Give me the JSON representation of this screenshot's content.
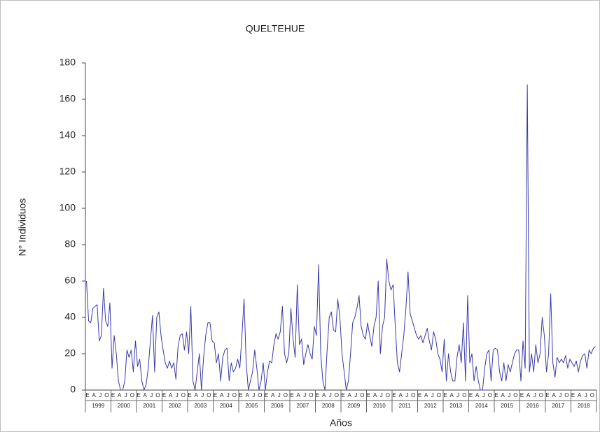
{
  "chart_data": {
    "type": "line",
    "title": "QUELTEHUE",
    "y_label": "N° Individuos",
    "x_label": "Años",
    "color": "#3a3aa8",
    "ylim": [
      0,
      180
    ],
    "yticks": [
      0,
      20,
      40,
      60,
      80,
      100,
      120,
      140,
      160,
      180
    ],
    "years": [
      "1999",
      "2000",
      "2001",
      "2002",
      "2003",
      "2004",
      "2005",
      "2006",
      "2007",
      "2008",
      "2009",
      "2010",
      "2011",
      "2012",
      "2013",
      "2014",
      "2015",
      "2016",
      "2017",
      "2018"
    ],
    "categories": [
      "E",
      null,
      null,
      "A",
      null,
      null,
      "J",
      null,
      null,
      "O",
      null,
      null,
      "E",
      null,
      null,
      "A",
      null,
      null,
      "J",
      null,
      null,
      "O",
      null,
      null,
      "E",
      null,
      null,
      "A",
      null,
      null,
      "J",
      null,
      null,
      "O",
      null,
      null,
      "E",
      null,
      null,
      "A",
      null,
      null,
      "J",
      null,
      null,
      "O",
      null,
      null,
      "E",
      null,
      null,
      "A",
      null,
      null,
      "J",
      null,
      null,
      "O",
      null,
      null,
      "E",
      null,
      null,
      "A",
      null,
      null,
      "J",
      null,
      null,
      "O",
      null,
      null,
      "E",
      null,
      null,
      "A",
      null,
      null,
      "J",
      null,
      null,
      "O",
      null,
      null,
      "E",
      null,
      null,
      "A",
      null,
      null,
      "J",
      null,
      null,
      "O",
      null,
      null,
      "E",
      null,
      null,
      "A",
      null,
      null,
      "J",
      null,
      null,
      "O",
      null,
      null,
      "E",
      null,
      null,
      "A",
      null,
      null,
      "J",
      null,
      null,
      "O",
      null,
      null,
      "E",
      null,
      null,
      "A",
      null,
      null,
      "J",
      null,
      null,
      "O",
      null,
      null,
      "E",
      null,
      null,
      "A",
      null,
      null,
      "J",
      null,
      null,
      "O",
      null,
      null,
      "E",
      null,
      null,
      "A",
      null,
      null,
      "J",
      null,
      null,
      "O",
      null,
      null,
      "E",
      null,
      null,
      "A",
      null,
      null,
      "J",
      null,
      null,
      "O",
      null,
      null,
      "E",
      null,
      null,
      "A",
      null,
      null,
      "J",
      null,
      null,
      "O",
      null,
      null,
      "E",
      null,
      null,
      "A",
      null,
      null,
      "J",
      null,
      null,
      "O",
      null,
      null,
      "E",
      null,
      null,
      "A",
      null,
      null,
      "J",
      null,
      null,
      "O",
      null,
      null,
      "E",
      null,
      null,
      "A",
      null,
      null,
      "J",
      null,
      null,
      "O",
      null,
      null,
      "E",
      null,
      null,
      "A",
      null,
      null,
      "J",
      null,
      null,
      "O",
      null,
      null,
      "E",
      null,
      null,
      "A",
      null,
      null,
      "J",
      null,
      null,
      "O",
      null,
      null
    ],
    "values": [
      60,
      38,
      37,
      45,
      46,
      47,
      27,
      30,
      56,
      38,
      35,
      48,
      12,
      30,
      20,
      5,
      0,
      0,
      5,
      22,
      18,
      22,
      10,
      27,
      13,
      17,
      5,
      0,
      3,
      12,
      27,
      41,
      10,
      40,
      43,
      30,
      22,
      15,
      12,
      16,
      12,
      15,
      6,
      24,
      30,
      31,
      22,
      32,
      20,
      46,
      5,
      0,
      10,
      20,
      0,
      18,
      30,
      37,
      37,
      27,
      26,
      15,
      20,
      5,
      18,
      22,
      23,
      5,
      15,
      10,
      12,
      17,
      12,
      30,
      50,
      15,
      0,
      5,
      10,
      22,
      12,
      0,
      5,
      15,
      0,
      10,
      16,
      15,
      25,
      31,
      28,
      32,
      46,
      20,
      15,
      20,
      45,
      28,
      18,
      58,
      25,
      28,
      14,
      20,
      25,
      20,
      17,
      35,
      30,
      69,
      20,
      5,
      0,
      22,
      40,
      43,
      33,
      32,
      50,
      40,
      20,
      10,
      0,
      5,
      20,
      37,
      40,
      45,
      52,
      35,
      30,
      28,
      37,
      30,
      24,
      35,
      40,
      60,
      20,
      35,
      40,
      72,
      60,
      55,
      58,
      35,
      15,
      10,
      20,
      30,
      45,
      65,
      42,
      38,
      34,
      30,
      28,
      30,
      26,
      30,
      34,
      27,
      22,
      32,
      28,
      20,
      17,
      10,
      28,
      5,
      20,
      10,
      5,
      5,
      18,
      25,
      15,
      37,
      5,
      52,
      15,
      20,
      5,
      13,
      5,
      0,
      0,
      12,
      20,
      22,
      5,
      22,
      23,
      22,
      10,
      5,
      15,
      5,
      14,
      10,
      15,
      20,
      22,
      22,
      5,
      27,
      12,
      168,
      10,
      20,
      10,
      25,
      15,
      20,
      40,
      30,
      10,
      20,
      53,
      15,
      7,
      18,
      15,
      17,
      15,
      19,
      12,
      17,
      15,
      13,
      16,
      10,
      16,
      19,
      20,
      12,
      22,
      20,
      23,
      24
    ]
  }
}
